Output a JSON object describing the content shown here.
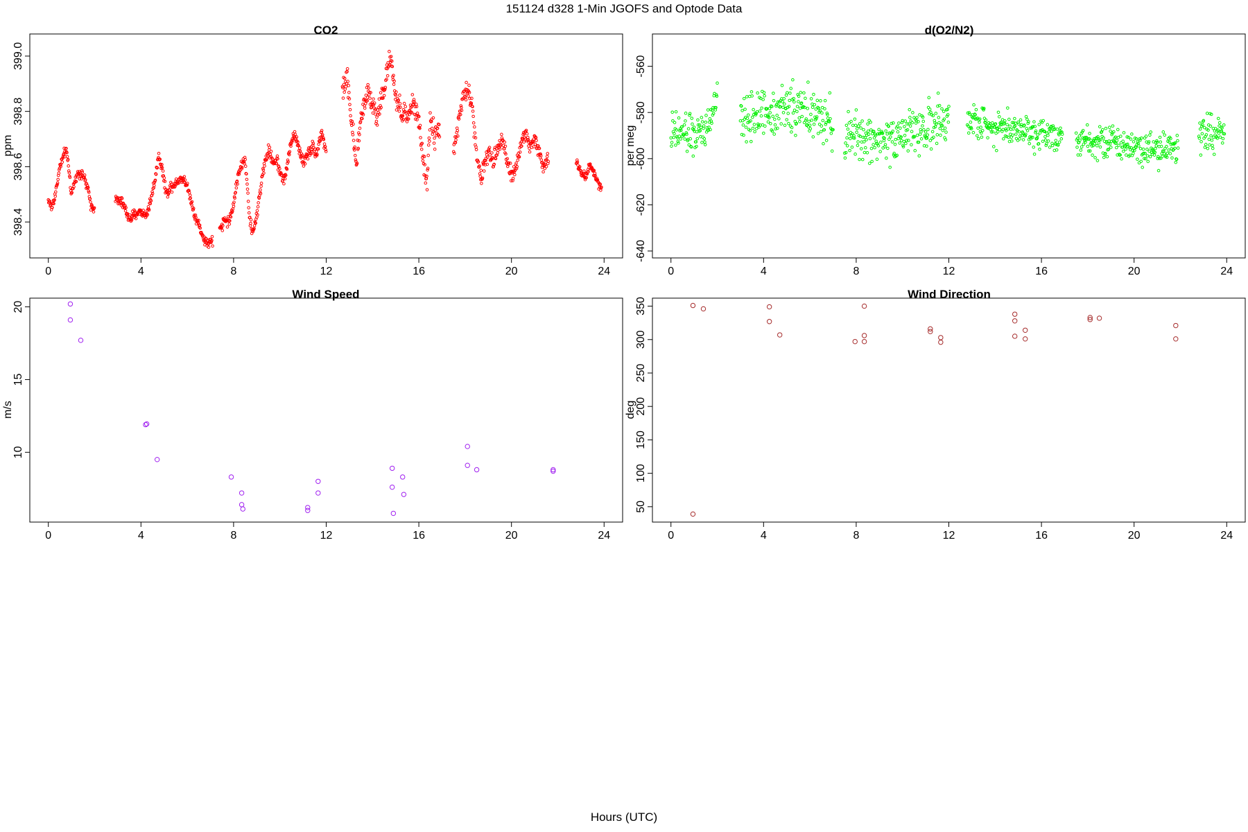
{
  "figure": {
    "title": "151124   d328   1-Min  JGOFS and Optode Data",
    "xlabel": "Hours (UTC)"
  },
  "chart_data": [
    {
      "id": "co2",
      "type": "scatter",
      "title": "CO2",
      "ylabel": "ppm",
      "color": "#ff0000",
      "marker_radius": 1.8,
      "xlim": [
        -0.8,
        24.8
      ],
      "ylim": [
        398.27,
        399.08
      ],
      "xticks": [
        0,
        4,
        8,
        12,
        16,
        20,
        24
      ],
      "yticks": [
        398.4,
        398.6,
        398.8,
        399.0
      ],
      "ytick_labels": [
        "398.4",
        "398.6",
        "398.8",
        "399.0"
      ],
      "segments": [
        {
          "start": 0.0,
          "end": 2.0,
          "step": 0.0167,
          "noise": 0.012,
          "anchors": [
            [
              0.0,
              398.48
            ],
            [
              0.15,
              398.45
            ],
            [
              0.3,
              398.5
            ],
            [
              0.5,
              398.6
            ],
            [
              0.75,
              398.66
            ],
            [
              0.85,
              398.62
            ],
            [
              1.0,
              398.5
            ],
            [
              1.15,
              398.55
            ],
            [
              1.3,
              398.58
            ],
            [
              1.5,
              398.57
            ],
            [
              1.7,
              398.52
            ],
            [
              1.85,
              398.46
            ],
            [
              2.0,
              398.45
            ]
          ]
        },
        {
          "start": 2.9,
          "end": 7.1,
          "step": 0.0167,
          "noise": 0.012,
          "anchors": [
            [
              2.9,
              398.48
            ],
            [
              3.2,
              398.47
            ],
            [
              3.5,
              398.41
            ],
            [
              3.8,
              398.43
            ],
            [
              4.0,
              398.44
            ],
            [
              4.2,
              398.42
            ],
            [
              4.4,
              398.47
            ],
            [
              4.6,
              398.55
            ],
            [
              4.75,
              398.64
            ],
            [
              4.9,
              398.6
            ],
            [
              5.1,
              398.5
            ],
            [
              5.3,
              398.53
            ],
            [
              5.5,
              398.54
            ],
            [
              5.7,
              398.56
            ],
            [
              5.9,
              398.55
            ],
            [
              6.1,
              398.5
            ],
            [
              6.3,
              398.43
            ],
            [
              6.5,
              398.39
            ],
            [
              6.7,
              398.34
            ],
            [
              6.9,
              398.32
            ],
            [
              7.05,
              398.33
            ]
          ]
        },
        {
          "start": 7.4,
          "end": 12.0,
          "step": 0.0167,
          "noise": 0.014,
          "anchors": [
            [
              7.4,
              398.37
            ],
            [
              7.6,
              398.41
            ],
            [
              7.8,
              398.4
            ],
            [
              8.0,
              398.46
            ],
            [
              8.2,
              398.58
            ],
            [
              8.5,
              398.63
            ],
            [
              8.7,
              398.4
            ],
            [
              8.85,
              398.36
            ],
            [
              9.05,
              398.45
            ],
            [
              9.3,
              398.6
            ],
            [
              9.5,
              398.66
            ],
            [
              9.7,
              398.62
            ],
            [
              9.9,
              398.62
            ],
            [
              10.0,
              398.58
            ],
            [
              10.2,
              398.55
            ],
            [
              10.4,
              398.65
            ],
            [
              10.6,
              398.72
            ],
            [
              10.8,
              398.68
            ],
            [
              11.0,
              398.61
            ],
            [
              11.2,
              398.65
            ],
            [
              11.4,
              398.67
            ],
            [
              11.6,
              398.65
            ],
            [
              11.8,
              398.73
            ],
            [
              12.0,
              398.65
            ]
          ]
        },
        {
          "start": 12.7,
          "end": 16.9,
          "step": 0.0167,
          "noise": 0.028,
          "anchors": [
            [
              12.7,
              398.87
            ],
            [
              12.9,
              398.93
            ],
            [
              13.1,
              398.75
            ],
            [
              13.3,
              398.6
            ],
            [
              13.5,
              398.78
            ],
            [
              13.8,
              398.88
            ],
            [
              14.0,
              398.83
            ],
            [
              14.2,
              398.78
            ],
            [
              14.5,
              398.88
            ],
            [
              14.7,
              398.98
            ],
            [
              14.85,
              398.96
            ],
            [
              15.0,
              398.85
            ],
            [
              15.2,
              398.8
            ],
            [
              15.4,
              398.78
            ],
            [
              15.6,
              398.8
            ],
            [
              15.8,
              398.83
            ],
            [
              16.0,
              398.75
            ],
            [
              16.2,
              398.62
            ],
            [
              16.35,
              398.54
            ],
            [
              16.5,
              398.78
            ],
            [
              16.7,
              398.7
            ],
            [
              16.9,
              398.75
            ]
          ]
        },
        {
          "start": 17.5,
          "end": 21.6,
          "step": 0.0167,
          "noise": 0.022,
          "anchors": [
            [
              17.5,
              398.66
            ],
            [
              17.7,
              398.75
            ],
            [
              17.9,
              398.85
            ],
            [
              18.1,
              398.88
            ],
            [
              18.3,
              398.82
            ],
            [
              18.5,
              398.65
            ],
            [
              18.7,
              398.55
            ],
            [
              18.8,
              398.6
            ],
            [
              19.0,
              398.65
            ],
            [
              19.2,
              398.62
            ],
            [
              19.4,
              398.66
            ],
            [
              19.6,
              398.72
            ],
            [
              19.8,
              398.62
            ],
            [
              20.0,
              398.57
            ],
            [
              20.2,
              398.6
            ],
            [
              20.4,
              398.68
            ],
            [
              20.6,
              398.72
            ],
            [
              20.8,
              398.67
            ],
            [
              21.0,
              398.7
            ],
            [
              21.2,
              398.65
            ],
            [
              21.4,
              398.6
            ],
            [
              21.6,
              398.62
            ]
          ]
        },
        {
          "start": 22.8,
          "end": 23.9,
          "step": 0.0167,
          "noise": 0.01,
          "anchors": [
            [
              22.8,
              398.62
            ],
            [
              23.0,
              398.58
            ],
            [
              23.2,
              398.56
            ],
            [
              23.4,
              398.61
            ],
            [
              23.6,
              398.57
            ],
            [
              23.8,
              398.53
            ],
            [
              23.9,
              398.53
            ]
          ]
        }
      ]
    },
    {
      "id": "o2n2",
      "type": "scatter",
      "title": "d(O2/N2)",
      "ylabel": "per meg",
      "color": "#00ee00",
      "marker_radius": 1.8,
      "xlim": [
        -0.8,
        24.8
      ],
      "ylim": [
        -643,
        -546
      ],
      "xticks": [
        0,
        4,
        8,
        12,
        16,
        20,
        24
      ],
      "yticks": [
        -640,
        -620,
        -600,
        -580,
        -560
      ],
      "ytick_labels": [
        "-640",
        "-620",
        "-600",
        "-580",
        "-560"
      ],
      "segments": [
        {
          "start": 0.0,
          "end": 2.0,
          "step": 0.02,
          "noise": 6,
          "anchors": [
            [
              0.0,
              -590
            ],
            [
              0.5,
              -589
            ],
            [
              1.0,
              -590
            ],
            [
              1.5,
              -588
            ],
            [
              2.0,
              -575
            ]
          ]
        },
        {
          "start": 3.0,
          "end": 7.0,
          "step": 0.02,
          "noise": 7,
          "anchors": [
            [
              3.0,
              -583
            ],
            [
              4.0,
              -580
            ],
            [
              5.0,
              -578
            ],
            [
              6.0,
              -580
            ],
            [
              7.0,
              -587
            ]
          ]
        },
        {
          "start": 7.5,
          "end": 12.0,
          "step": 0.02,
          "noise": 7,
          "anchors": [
            [
              7.5,
              -590
            ],
            [
              9.0,
              -592
            ],
            [
              10.5,
              -588
            ],
            [
              12.0,
              -584
            ]
          ]
        },
        {
          "start": 12.8,
          "end": 16.9,
          "step": 0.02,
          "noise": 5,
          "anchors": [
            [
              12.8,
              -583
            ],
            [
              14.0,
              -586
            ],
            [
              15.5,
              -588
            ],
            [
              16.9,
              -590
            ]
          ]
        },
        {
          "start": 17.5,
          "end": 21.9,
          "step": 0.02,
          "noise": 5,
          "anchors": [
            [
              17.5,
              -591
            ],
            [
              19.0,
              -593
            ],
            [
              20.5,
              -595
            ],
            [
              21.9,
              -596
            ]
          ]
        },
        {
          "start": 22.8,
          "end": 23.9,
          "step": 0.02,
          "noise": 6,
          "anchors": [
            [
              22.8,
              -588
            ],
            [
              23.9,
              -590
            ]
          ]
        }
      ]
    },
    {
      "id": "wspd",
      "type": "scatter",
      "title": "Wind Speed",
      "ylabel": "m/s",
      "color": "#a020f0",
      "marker_radius": 3.2,
      "xlim": [
        -0.8,
        24.8
      ],
      "ylim": [
        5.2,
        20.6
      ],
      "xticks": [
        0,
        4,
        8,
        12,
        16,
        20,
        24
      ],
      "yticks": [
        10,
        15,
        20
      ],
      "ytick_labels": [
        "10",
        "15",
        "20"
      ],
      "points": [
        [
          0.95,
          20.2
        ],
        [
          0.95,
          19.1
        ],
        [
          1.4,
          17.7
        ],
        [
          4.2,
          11.9
        ],
        [
          4.25,
          11.95
        ],
        [
          4.7,
          9.5
        ],
        [
          7.9,
          8.3
        ],
        [
          8.35,
          7.2
        ],
        [
          8.35,
          6.4
        ],
        [
          8.4,
          6.1
        ],
        [
          11.2,
          6.2
        ],
        [
          11.2,
          6.0
        ],
        [
          11.65,
          8.0
        ],
        [
          11.65,
          7.2
        ],
        [
          14.85,
          8.9
        ],
        [
          14.85,
          7.6
        ],
        [
          14.9,
          5.8
        ],
        [
          15.3,
          8.3
        ],
        [
          15.35,
          7.1
        ],
        [
          18.1,
          10.4
        ],
        [
          18.1,
          9.1
        ],
        [
          18.5,
          8.8
        ],
        [
          21.8,
          8.7
        ],
        [
          21.8,
          8.8
        ]
      ]
    },
    {
      "id": "wdir",
      "type": "scatter",
      "title": "Wind Direction",
      "ylabel": "deg",
      "color": "#a52a2a",
      "marker_radius": 3.2,
      "xlim": [
        -0.8,
        24.8
      ],
      "ylim": [
        27,
        362
      ],
      "xticks": [
        0,
        4,
        8,
        12,
        16,
        20,
        24
      ],
      "yticks": [
        50,
        100,
        150,
        200,
        250,
        300,
        350
      ],
      "ytick_labels": [
        "50",
        "100",
        "150",
        "200",
        "250",
        "300",
        "350"
      ],
      "points": [
        [
          0.95,
          351
        ],
        [
          1.4,
          346
        ],
        [
          0.95,
          39
        ],
        [
          4.25,
          349
        ],
        [
          4.25,
          327
        ],
        [
          4.7,
          307
        ],
        [
          7.95,
          297
        ],
        [
          8.35,
          350
        ],
        [
          8.35,
          306
        ],
        [
          8.35,
          297
        ],
        [
          11.2,
          316
        ],
        [
          11.2,
          312
        ],
        [
          11.65,
          303
        ],
        [
          11.65,
          296
        ],
        [
          14.85,
          338
        ],
        [
          14.85,
          328
        ],
        [
          14.85,
          305
        ],
        [
          15.3,
          314
        ],
        [
          15.3,
          301
        ],
        [
          18.1,
          333
        ],
        [
          18.1,
          330
        ],
        [
          18.5,
          332
        ],
        [
          21.8,
          321
        ],
        [
          21.8,
          301
        ]
      ]
    }
  ]
}
